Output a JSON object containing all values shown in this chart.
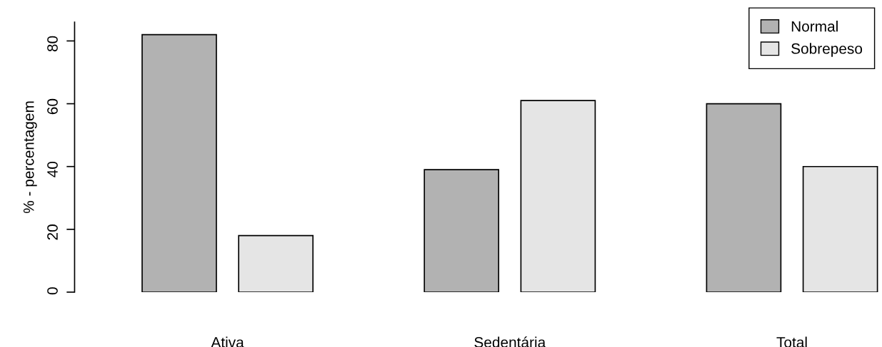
{
  "chart_data": {
    "type": "bar",
    "ylabel": "% - percentagem",
    "categories": [
      "Ativa",
      "Sedentária",
      "Total"
    ],
    "series": [
      {
        "name": "Normal",
        "color": "#b2b2b2",
        "values": [
          82,
          39,
          60
        ]
      },
      {
        "name": "Sobrepeso",
        "color": "#e5e5e5",
        "values": [
          18,
          61,
          40
        ]
      }
    ],
    "ylim": [
      0,
      86
    ],
    "yticks": [
      0,
      20,
      40,
      60,
      80
    ],
    "legend": "top right",
    "grid": false
  }
}
